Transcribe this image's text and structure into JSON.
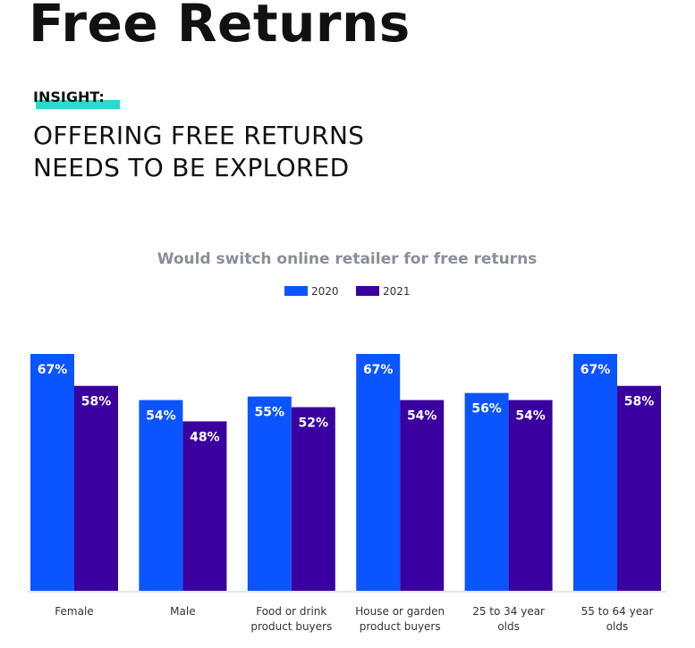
{
  "header": {
    "title": "Free Returns",
    "insight_label": "INSIGHT:",
    "headline_lines": [
      "OFFERING FREE RETURNS",
      "NEEDS TO BE EXPLORED"
    ]
  },
  "colors": {
    "series_2020": "#0a55ff",
    "series_2021": "#3a00a0",
    "accent": "#2ad9cf",
    "chart_title": "#8a8e99"
  },
  "chart_data": {
    "type": "bar",
    "title": "Would switch online retailer for free returns",
    "xlabel": "",
    "ylabel": "",
    "ylim": [
      0,
      70
    ],
    "grid": false,
    "legend": "top-center",
    "categories": [
      [
        "Female"
      ],
      [
        "Male"
      ],
      [
        "Food or drink",
        "product buyers"
      ],
      [
        "House or garden",
        "product buyers"
      ],
      [
        "25 to 34 year",
        "olds"
      ],
      [
        "55 to 64 year",
        "olds"
      ]
    ],
    "series": [
      {
        "name": "2020",
        "values": [
          67,
          54,
          55,
          67,
          56,
          67
        ],
        "labels": [
          "67%",
          "54%",
          "55%",
          "67%",
          "56%",
          "67%"
        ]
      },
      {
        "name": "2021",
        "values": [
          58,
          48,
          52,
          54,
          54,
          58
        ],
        "labels": [
          "58%",
          "48%",
          "52%",
          "54%",
          "54%",
          "58%"
        ]
      }
    ]
  }
}
